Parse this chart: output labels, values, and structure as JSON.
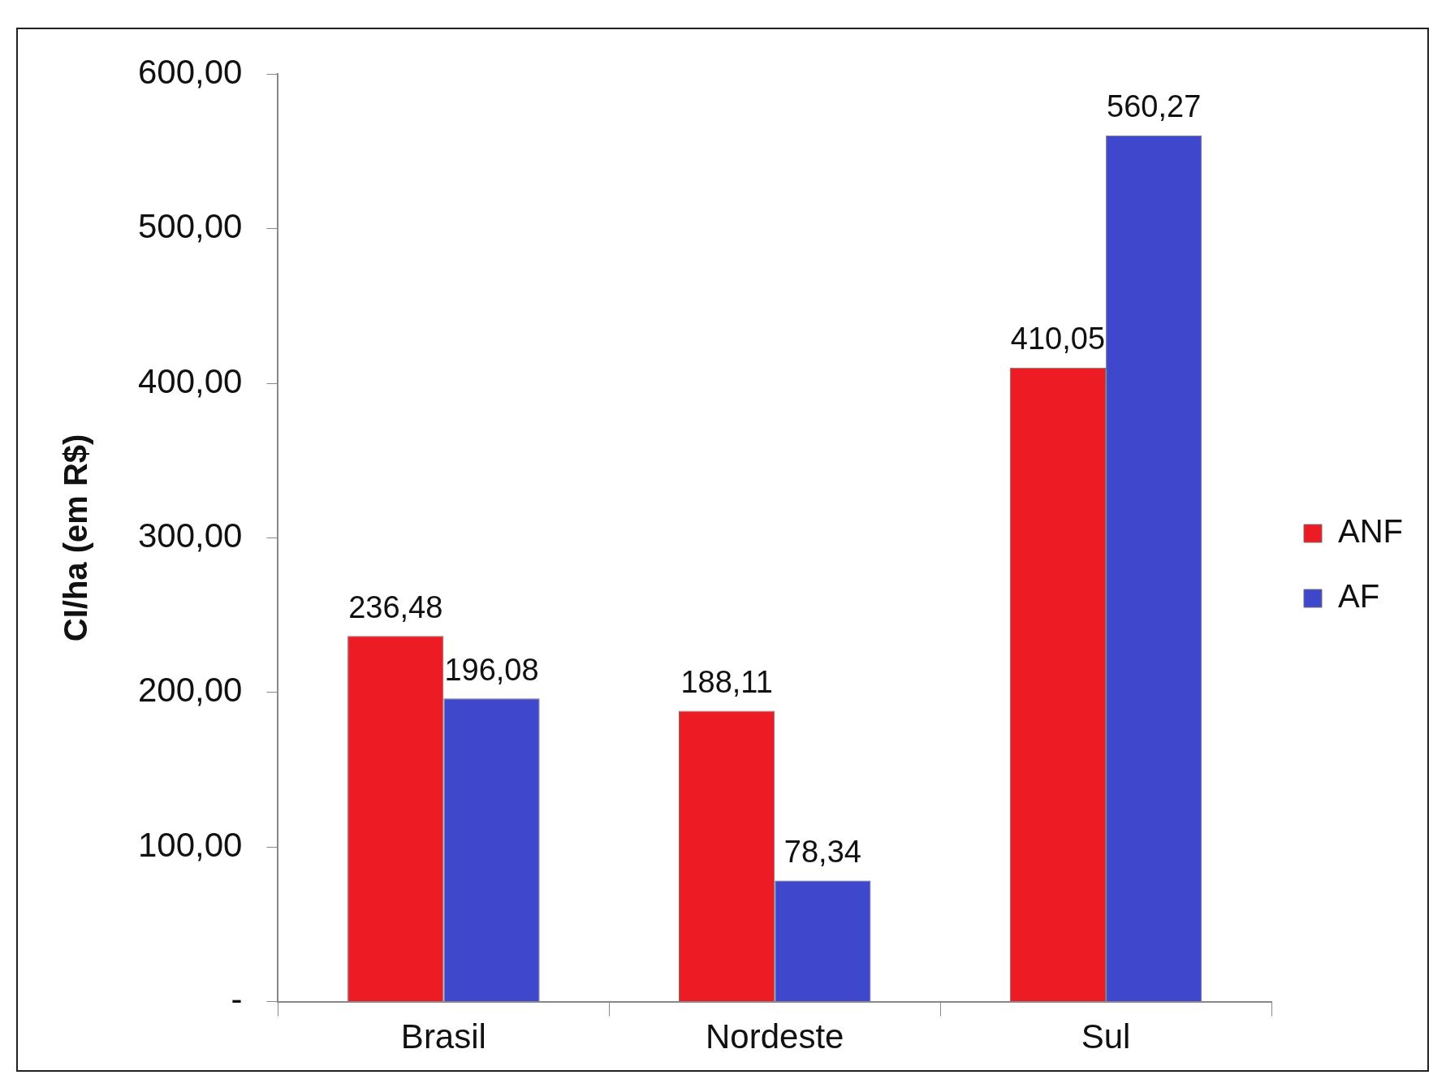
{
  "chart_data": {
    "type": "bar",
    "ylabel": "CI/ha (em R$)",
    "categories": [
      "Brasil",
      "Nordeste",
      "Sul"
    ],
    "series": [
      {
        "name": "ANF",
        "color": "#ed1c24",
        "values": [
          236.48,
          188.11,
          410.05
        ],
        "value_labels": [
          "236,48",
          "188,11",
          "410,05"
        ]
      },
      {
        "name": "AF",
        "color": "#3f48cc",
        "values": [
          196.08,
          78.34,
          560.27
        ],
        "value_labels": [
          "196,08",
          "78,34",
          "560,27"
        ]
      }
    ],
    "ylim": [
      0,
      600
    ],
    "yticks": [
      {
        "value": 0,
        "label": "-"
      },
      {
        "value": 100,
        "label": "100,00"
      },
      {
        "value": 200,
        "label": "200,00"
      },
      {
        "value": 300,
        "label": "300,00"
      },
      {
        "value": 400,
        "label": "400,00"
      },
      {
        "value": 500,
        "label": "500,00"
      },
      {
        "value": 600,
        "label": "600,00"
      }
    ],
    "grid": false,
    "legend": "right"
  }
}
